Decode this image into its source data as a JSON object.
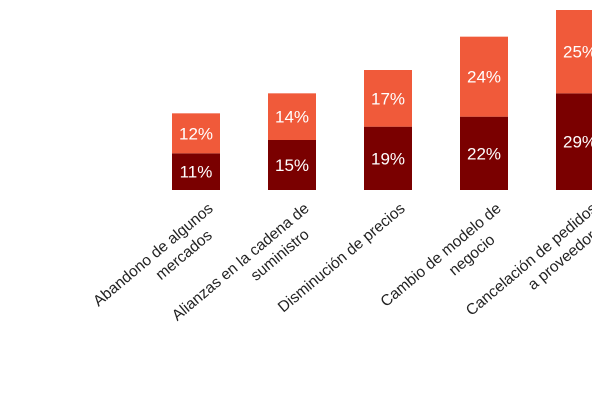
{
  "chart_data": {
    "type": "bar",
    "stacked": true,
    "categories": [
      [
        "Abandono de algunos",
        "mercados"
      ],
      [
        "Alianzas en la cadena de",
        "suministro"
      ],
      [
        "Disminución de precios"
      ],
      [
        "Cambio de modelo de",
        "negocio"
      ],
      [
        "Cancelación de pedidos",
        "a proveedores"
      ]
    ],
    "series": [
      {
        "values": [
          11,
          15,
          19,
          22,
          29
        ],
        "labels": [
          "11%",
          "15%",
          "19%",
          "22%",
          "29%"
        ]
      },
      {
        "values": [
          12,
          14,
          17,
          24,
          25
        ],
        "labels": [
          "12%",
          "14%",
          "17%",
          "24%",
          "25%"
        ]
      }
    ],
    "colors": [
      "#7a0000",
      "#f05a3a"
    ],
    "ylim": [
      0,
      54
    ],
    "grid": false,
    "legend": "none"
  }
}
